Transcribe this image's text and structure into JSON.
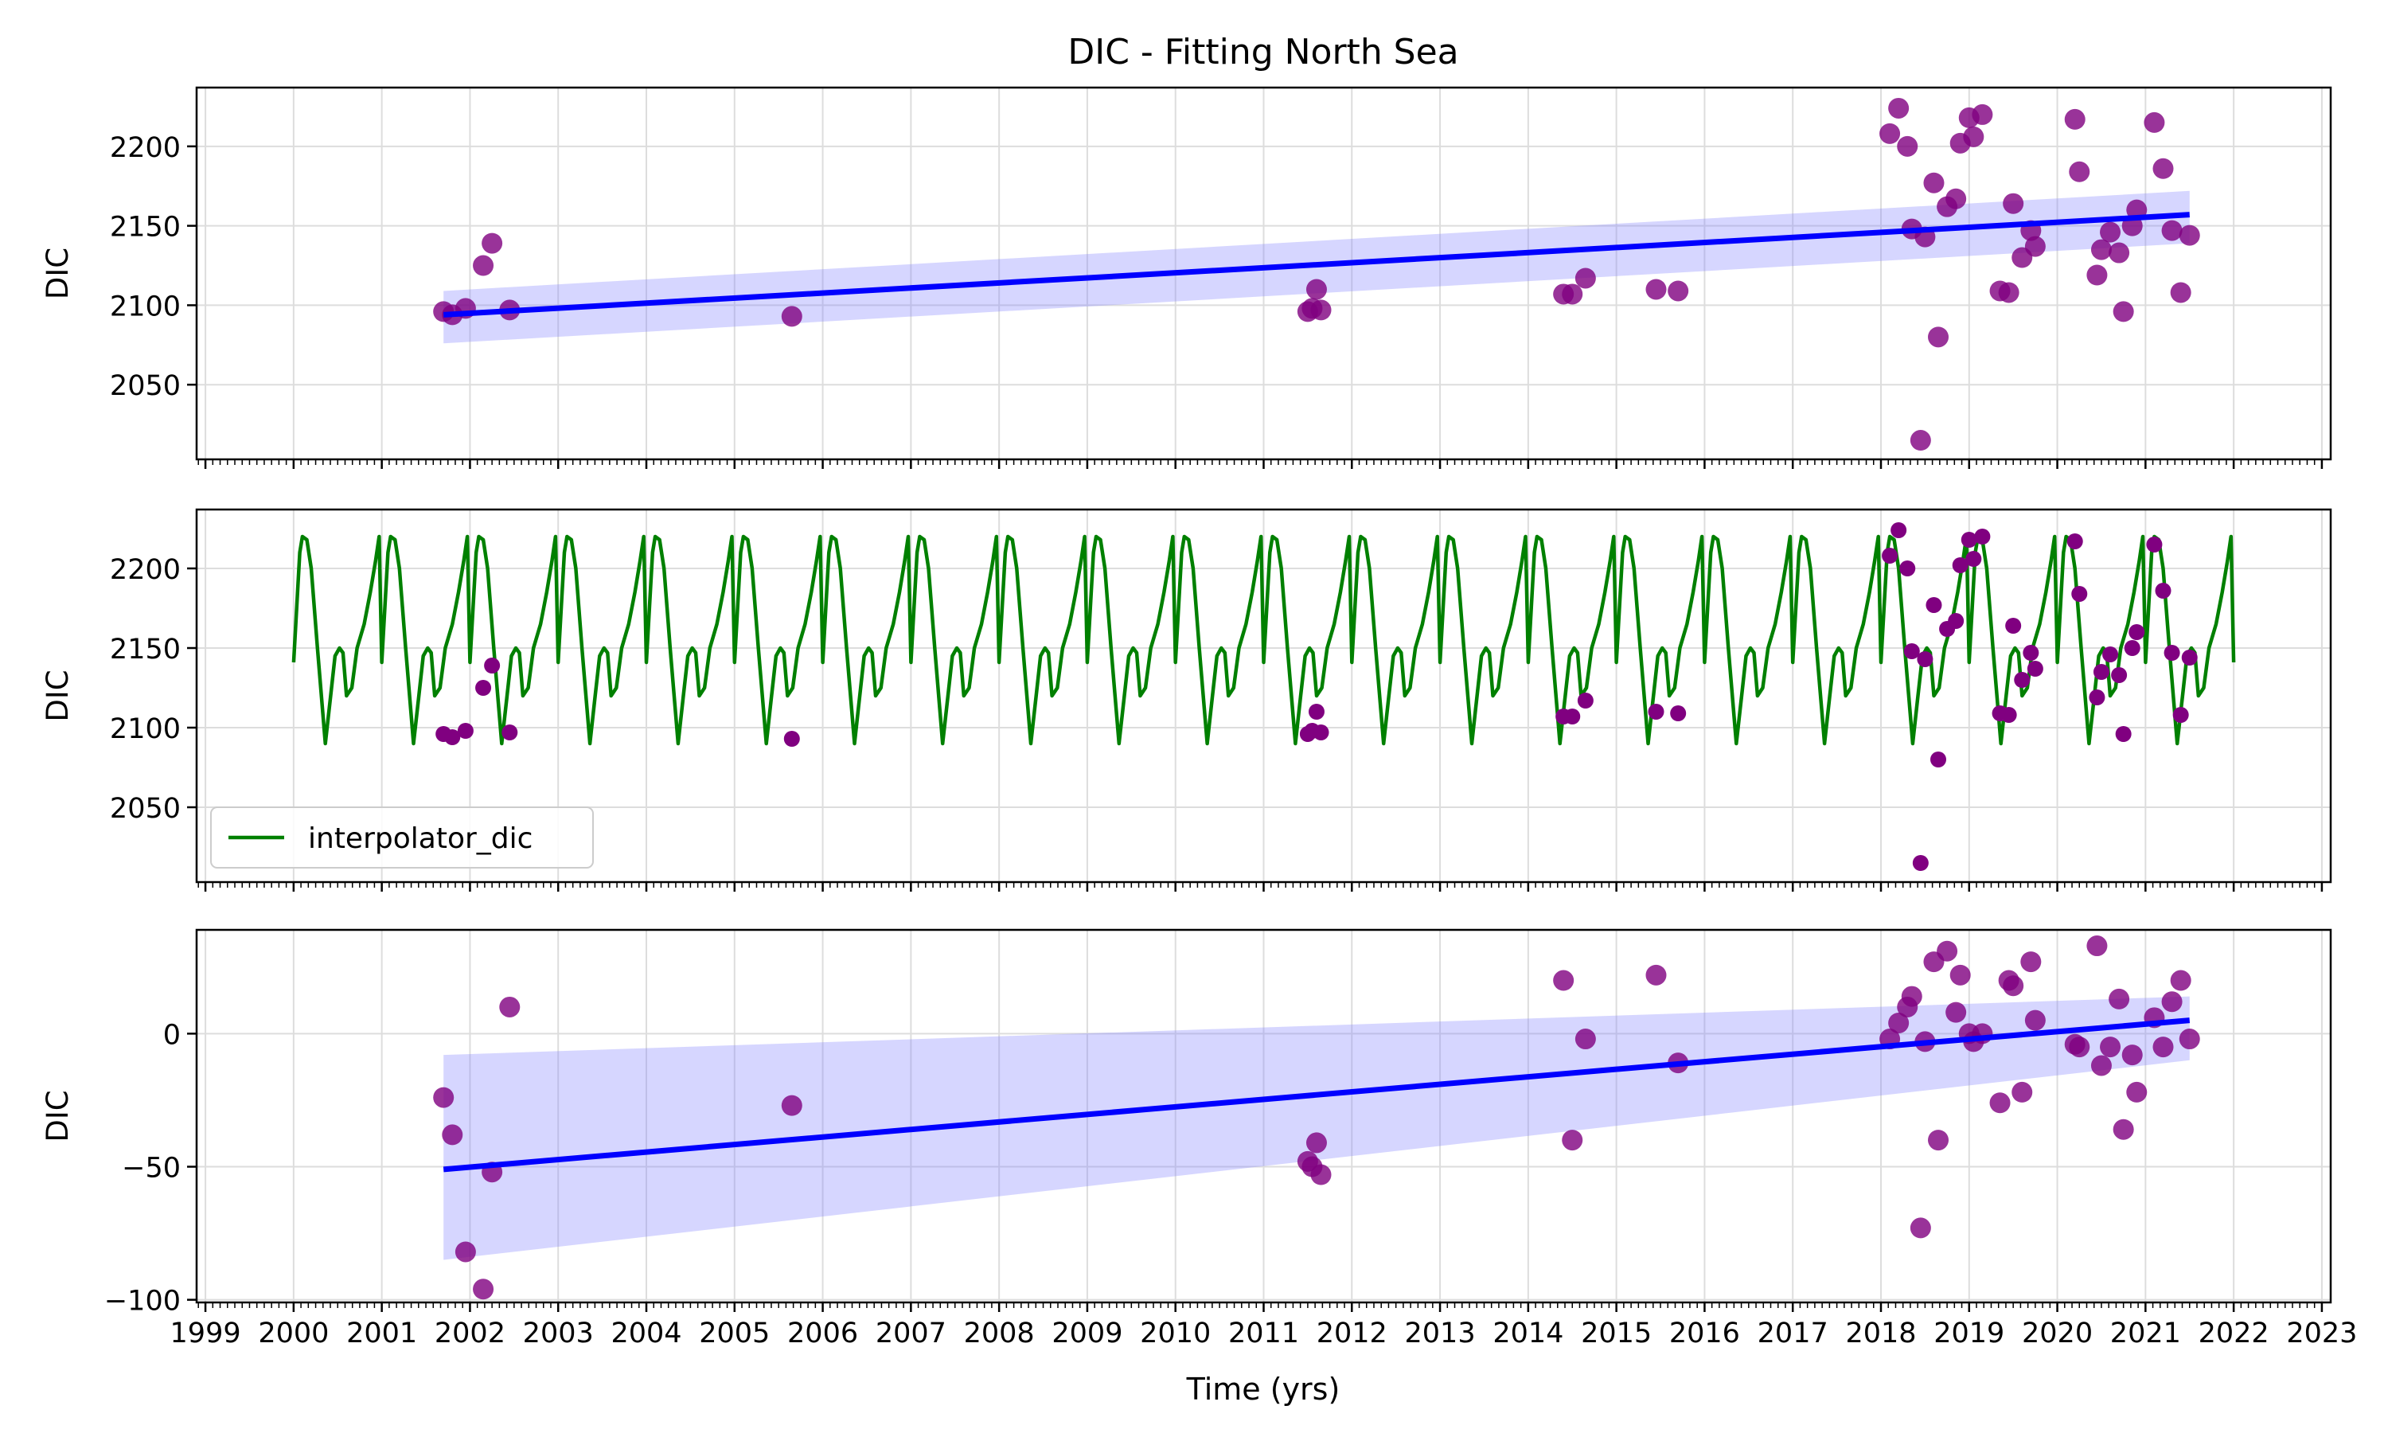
{
  "figure": {
    "title": "DIC - Fitting North Sea",
    "xlabel": "Time (yrs)"
  },
  "colors": {
    "scatter": "#800080",
    "fit_line": "#0000ff",
    "band": "#8080ff",
    "interp_line": "#008000",
    "grid": "#dddddd"
  },
  "chart_data": [
    {
      "type": "scatter",
      "panel": "top",
      "ylabel": "DIC",
      "xlim": [
        1998.9,
        2023.1
      ],
      "ylim": [
        2003,
        2237
      ],
      "yticks": [
        2050,
        2100,
        2150,
        2200
      ],
      "grid": true,
      "points": [
        [
          2001.7,
          2096
        ],
        [
          2001.8,
          2094
        ],
        [
          2001.95,
          2098
        ],
        [
          2002.15,
          2125
        ],
        [
          2002.25,
          2139
        ],
        [
          2002.45,
          2097
        ],
        [
          2005.65,
          2093
        ],
        [
          2011.5,
          2096
        ],
        [
          2011.55,
          2098
        ],
        [
          2011.6,
          2110
        ],
        [
          2011.65,
          2097
        ],
        [
          2014.4,
          2107
        ],
        [
          2014.5,
          2107
        ],
        [
          2014.65,
          2117
        ],
        [
          2015.45,
          2110
        ],
        [
          2015.7,
          2109
        ],
        [
          2018.1,
          2208
        ],
        [
          2018.2,
          2224
        ],
        [
          2018.3,
          2200
        ],
        [
          2018.35,
          2148
        ],
        [
          2018.45,
          2015
        ],
        [
          2018.5,
          2143
        ],
        [
          2018.6,
          2177
        ],
        [
          2018.65,
          2080
        ],
        [
          2018.75,
          2162
        ],
        [
          2018.85,
          2167
        ],
        [
          2018.9,
          2202
        ],
        [
          2019.0,
          2218
        ],
        [
          2019.05,
          2206
        ],
        [
          2019.15,
          2220
        ],
        [
          2019.35,
          2109
        ],
        [
          2019.45,
          2108
        ],
        [
          2019.5,
          2164
        ],
        [
          2019.6,
          2130
        ],
        [
          2019.7,
          2147
        ],
        [
          2019.75,
          2137
        ],
        [
          2020.2,
          2217
        ],
        [
          2020.25,
          2184
        ],
        [
          2020.45,
          2119
        ],
        [
          2020.5,
          2135
        ],
        [
          2020.6,
          2146
        ],
        [
          2020.7,
          2133
        ],
        [
          2020.75,
          2096
        ],
        [
          2020.85,
          2150
        ],
        [
          2020.9,
          2160
        ],
        [
          2021.1,
          2215
        ],
        [
          2021.2,
          2186
        ],
        [
          2021.3,
          2147
        ],
        [
          2021.4,
          2108
        ],
        [
          2021.5,
          2144
        ]
      ],
      "fit": {
        "x": [
          2001.7,
          2021.5
        ],
        "y": [
          2094,
          2157
        ]
      },
      "band": {
        "upper": [
          2109,
          2172
        ],
        "lower": [
          2076,
          2139
        ]
      }
    },
    {
      "type": "line",
      "panel": "middle",
      "ylabel": "DIC",
      "xlim": [
        1998.9,
        2023.1
      ],
      "ylim": [
        2003,
        2237
      ],
      "yticks": [
        2050,
        2100,
        2150,
        2200
      ],
      "grid": true,
      "legend": {
        "position": "lower-left",
        "entries": [
          "interpolator_dic"
        ]
      },
      "series": [
        {
          "name": "interpolator_dic",
          "x_range": [
            2000.0,
            2022.0
          ],
          "annual_cycle": {
            "t": [
              0.0,
              0.07,
              0.1,
              0.15,
              0.2,
              0.27,
              0.36,
              0.42,
              0.47,
              0.52,
              0.56,
              0.6,
              0.66,
              0.72,
              0.8,
              0.87,
              0.93,
              0.97,
              1.0
            ],
            "y": [
              2141,
              2210,
              2220,
              2218,
              2200,
              2150,
              2090,
              2120,
              2145,
              2150,
              2147,
              2120,
              2125,
              2150,
              2165,
              2185,
              2205,
              2220,
              2141
            ]
          }
        }
      ],
      "points": [
        [
          2001.7,
          2096
        ],
        [
          2001.8,
          2094
        ],
        [
          2001.95,
          2098
        ],
        [
          2002.15,
          2125
        ],
        [
          2002.25,
          2139
        ],
        [
          2002.45,
          2097
        ],
        [
          2005.65,
          2093
        ],
        [
          2011.5,
          2096
        ],
        [
          2011.55,
          2098
        ],
        [
          2011.6,
          2110
        ],
        [
          2011.65,
          2097
        ],
        [
          2014.4,
          2107
        ],
        [
          2014.5,
          2107
        ],
        [
          2014.65,
          2117
        ],
        [
          2015.45,
          2110
        ],
        [
          2015.7,
          2109
        ],
        [
          2018.1,
          2208
        ],
        [
          2018.2,
          2224
        ],
        [
          2018.3,
          2200
        ],
        [
          2018.35,
          2148
        ],
        [
          2018.45,
          2015
        ],
        [
          2018.5,
          2143
        ],
        [
          2018.6,
          2177
        ],
        [
          2018.65,
          2080
        ],
        [
          2018.75,
          2162
        ],
        [
          2018.85,
          2167
        ],
        [
          2018.9,
          2202
        ],
        [
          2019.0,
          2218
        ],
        [
          2019.05,
          2206
        ],
        [
          2019.15,
          2220
        ],
        [
          2019.35,
          2109
        ],
        [
          2019.45,
          2108
        ],
        [
          2019.5,
          2164
        ],
        [
          2019.6,
          2130
        ],
        [
          2019.7,
          2147
        ],
        [
          2019.75,
          2137
        ],
        [
          2020.2,
          2217
        ],
        [
          2020.25,
          2184
        ],
        [
          2020.45,
          2119
        ],
        [
          2020.5,
          2135
        ],
        [
          2020.6,
          2146
        ],
        [
          2020.7,
          2133
        ],
        [
          2020.75,
          2096
        ],
        [
          2020.85,
          2150
        ],
        [
          2020.9,
          2160
        ],
        [
          2021.1,
          2215
        ],
        [
          2021.2,
          2186
        ],
        [
          2021.3,
          2147
        ],
        [
          2021.4,
          2108
        ],
        [
          2021.5,
          2144
        ]
      ]
    },
    {
      "type": "scatter",
      "panel": "bottom",
      "ylabel": "DIC",
      "xlim": [
        1998.9,
        2023.1
      ],
      "ylim": [
        -101,
        39
      ],
      "yticks": [
        -100,
        -50,
        0
      ],
      "xticks": [
        1999,
        2000,
        2001,
        2002,
        2003,
        2004,
        2005,
        2006,
        2007,
        2008,
        2009,
        2010,
        2011,
        2012,
        2013,
        2014,
        2015,
        2016,
        2017,
        2018,
        2019,
        2020,
        2021,
        2022,
        2023
      ],
      "grid": true,
      "points": [
        [
          2001.7,
          -24
        ],
        [
          2001.8,
          -38
        ],
        [
          2001.95,
          -82
        ],
        [
          2002.15,
          -96
        ],
        [
          2002.25,
          -52
        ],
        [
          2002.45,
          10
        ],
        [
          2005.65,
          -27
        ],
        [
          2011.5,
          -48
        ],
        [
          2011.55,
          -50
        ],
        [
          2011.6,
          -41
        ],
        [
          2011.65,
          -53
        ],
        [
          2014.4,
          20
        ],
        [
          2014.5,
          -40
        ],
        [
          2014.65,
          -2
        ],
        [
          2015.45,
          22
        ],
        [
          2015.7,
          -11
        ],
        [
          2018.1,
          -2
        ],
        [
          2018.2,
          4
        ],
        [
          2018.3,
          10
        ],
        [
          2018.35,
          14
        ],
        [
          2018.45,
          -73
        ],
        [
          2018.5,
          -3
        ],
        [
          2018.6,
          27
        ],
        [
          2018.65,
          -40
        ],
        [
          2018.75,
          31
        ],
        [
          2018.85,
          8
        ],
        [
          2018.9,
          22
        ],
        [
          2019.0,
          0
        ],
        [
          2019.05,
          -3
        ],
        [
          2019.15,
          0
        ],
        [
          2019.35,
          -26
        ],
        [
          2019.45,
          20
        ],
        [
          2019.5,
          18
        ],
        [
          2019.6,
          -22
        ],
        [
          2019.7,
          27
        ],
        [
          2019.75,
          5
        ],
        [
          2020.2,
          -4
        ],
        [
          2020.25,
          -5
        ],
        [
          2020.45,
          33
        ],
        [
          2020.5,
          -12
        ],
        [
          2020.6,
          -5
        ],
        [
          2020.7,
          13
        ],
        [
          2020.75,
          -36
        ],
        [
          2020.85,
          -8
        ],
        [
          2020.9,
          -22
        ],
        [
          2021.1,
          6
        ],
        [
          2021.2,
          -5
        ],
        [
          2021.3,
          12
        ],
        [
          2021.4,
          20
        ],
        [
          2021.5,
          -2
        ]
      ],
      "fit": {
        "x": [
          2001.7,
          2021.5
        ],
        "y": [
          -51,
          5
        ]
      },
      "band": {
        "upper": [
          -8,
          14
        ],
        "lower": [
          -85,
          -10
        ]
      }
    }
  ]
}
